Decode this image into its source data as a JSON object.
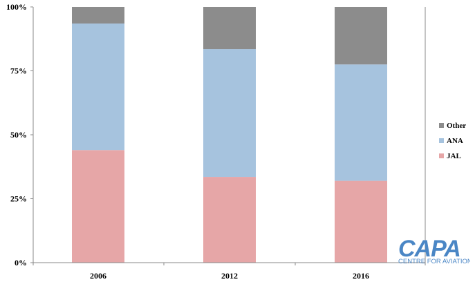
{
  "chart_data": {
    "type": "bar",
    "stacked": true,
    "normalized": true,
    "categories": [
      "2006",
      "2012",
      "2016"
    ],
    "series": [
      {
        "name": "JAL",
        "color": "#e6a6a7",
        "values": [
          44,
          33.5,
          32
        ]
      },
      {
        "name": "ANA",
        "color": "#a6c3de",
        "values": [
          49.5,
          50,
          45.5
        ]
      },
      {
        "name": "Other",
        "color": "#8c8c8c",
        "values": [
          6.5,
          16.5,
          22.5
        ]
      }
    ],
    "yticks": [
      "0%",
      "25%",
      "50%",
      "75%",
      "100%"
    ],
    "ylim": [
      0,
      100
    ],
    "legend_position": "right",
    "grid": false
  },
  "logo": {
    "main": "CAPA",
    "sub": "CENTRE FOR AVIATION"
  }
}
